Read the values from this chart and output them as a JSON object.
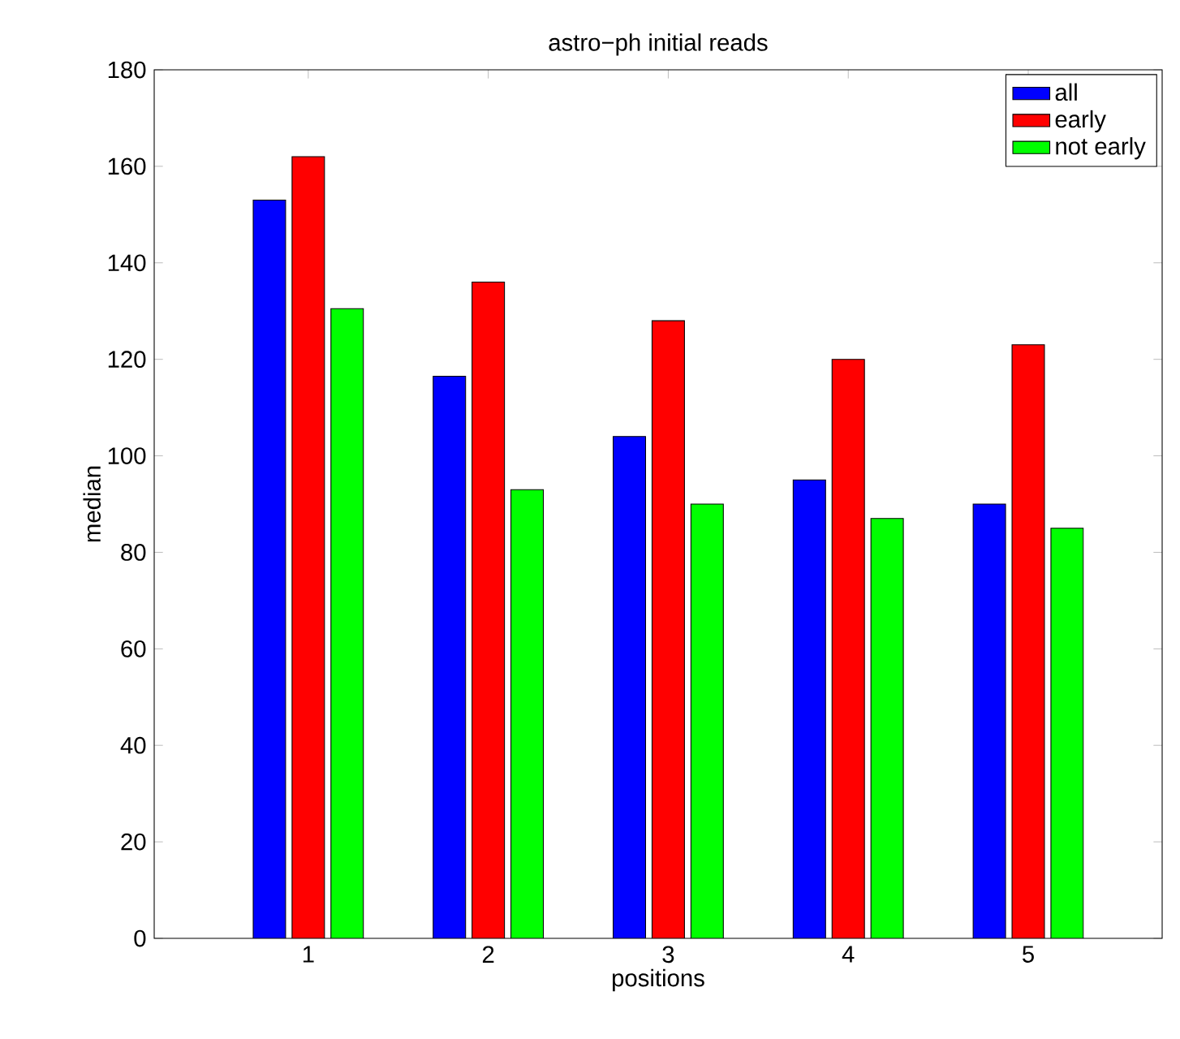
{
  "chart_data": {
    "type": "bar",
    "title": "astro−ph initial reads",
    "xlabel": "positions",
    "ylabel": "median",
    "categories": [
      "1",
      "2",
      "3",
      "4",
      "5"
    ],
    "series": [
      {
        "name": "all",
        "color": "#0000ff",
        "values": [
          153,
          116.5,
          104,
          95,
          90
        ]
      },
      {
        "name": "early",
        "color": "#ff0000",
        "values": [
          162,
          136,
          128,
          120,
          123
        ]
      },
      {
        "name": "not early",
        "color": "#00ff00",
        "values": [
          130.5,
          93,
          90,
          87,
          85
        ]
      }
    ],
    "ylim": [
      0,
      180
    ],
    "yticks": [
      0,
      20,
      40,
      60,
      80,
      100,
      120,
      140,
      160,
      180
    ],
    "grid": false,
    "legend": "top right"
  }
}
